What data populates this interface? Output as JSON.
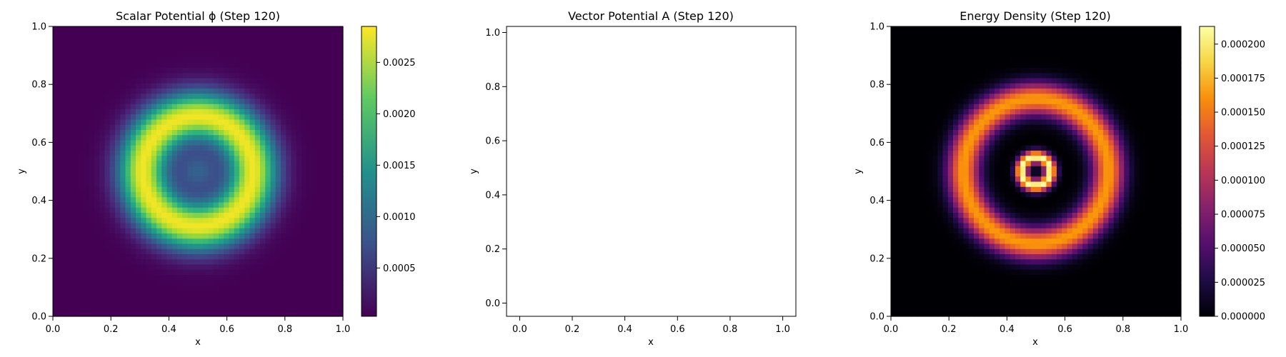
{
  "chart_data": [
    {
      "type": "heatmap",
      "title": "Scalar Potential ϕ (Step 120)",
      "xlabel": "x",
      "ylabel": "y",
      "xlim": [
        0.0,
        1.0
      ],
      "ylim": [
        0.0,
        1.0
      ],
      "xticks": [
        "0.0",
        "0.2",
        "0.4",
        "0.6",
        "0.8",
        "1.0"
      ],
      "yticks": [
        "0.0",
        "0.2",
        "0.4",
        "0.6",
        "0.8",
        "1.0"
      ],
      "colormap": "viridis",
      "field": {
        "shape": "ring",
        "center": [
          0.5,
          0.5
        ],
        "ring_radius": 0.19,
        "ring_width": 0.085,
        "center_value": 0.0009,
        "peak_value": 0.0028,
        "background_value": 3e-05
      },
      "colorbar": {
        "range": [
          3e-05,
          0.00285
        ],
        "ticks": [
          0.0005,
          0.001,
          0.0015,
          0.002,
          0.0025
        ],
        "tick_labels": [
          "0.0005",
          "0.0010",
          "0.0015",
          "0.0020",
          "0.0025"
        ]
      }
    },
    {
      "type": "scatter",
      "title": "Vector Potential A (Step 120)",
      "xlabel": "x",
      "ylabel": "y",
      "xlim": [
        -0.05,
        1.05
      ],
      "ylim": [
        -0.05,
        1.05
      ],
      "xticks": [
        "0.0",
        "0.2",
        "0.4",
        "0.6",
        "0.8",
        "1.0"
      ],
      "yticks": [
        "0.0",
        "0.2",
        "0.4",
        "0.6",
        "0.8",
        "1.0"
      ],
      "series": []
    },
    {
      "type": "heatmap",
      "title": "Energy Density (Step 120)",
      "xlabel": "x",
      "ylabel": "y",
      "xlim": [
        0.0,
        1.0
      ],
      "ylim": [
        0.0,
        1.0
      ],
      "xticks": [
        "0.0",
        "0.2",
        "0.4",
        "0.6",
        "0.8",
        "1.0"
      ],
      "yticks": [
        "0.0",
        "0.2",
        "0.4",
        "0.6",
        "0.8",
        "1.0"
      ],
      "colormap": "inferno",
      "field": {
        "shape": "concentric-rings",
        "center": [
          0.5,
          0.5
        ],
        "rings": [
          {
            "radius": 0.05,
            "width": 0.022,
            "peak": 0.000213
          },
          {
            "radius": 0.25,
            "width": 0.055,
            "peak": 0.000165
          }
        ]
      },
      "colorbar": {
        "range": [
          0.0,
          0.000213
        ],
        "ticks": [
          0.0,
          2.5e-05,
          5e-05,
          7.5e-05,
          0.0001,
          0.000125,
          0.00015,
          0.000175,
          0.0002
        ],
        "tick_labels": [
          "0.000000",
          "0.000025",
          "0.000050",
          "0.000075",
          "0.000100",
          "0.000125",
          "0.000150",
          "0.000175",
          "0.000200"
        ]
      }
    }
  ]
}
